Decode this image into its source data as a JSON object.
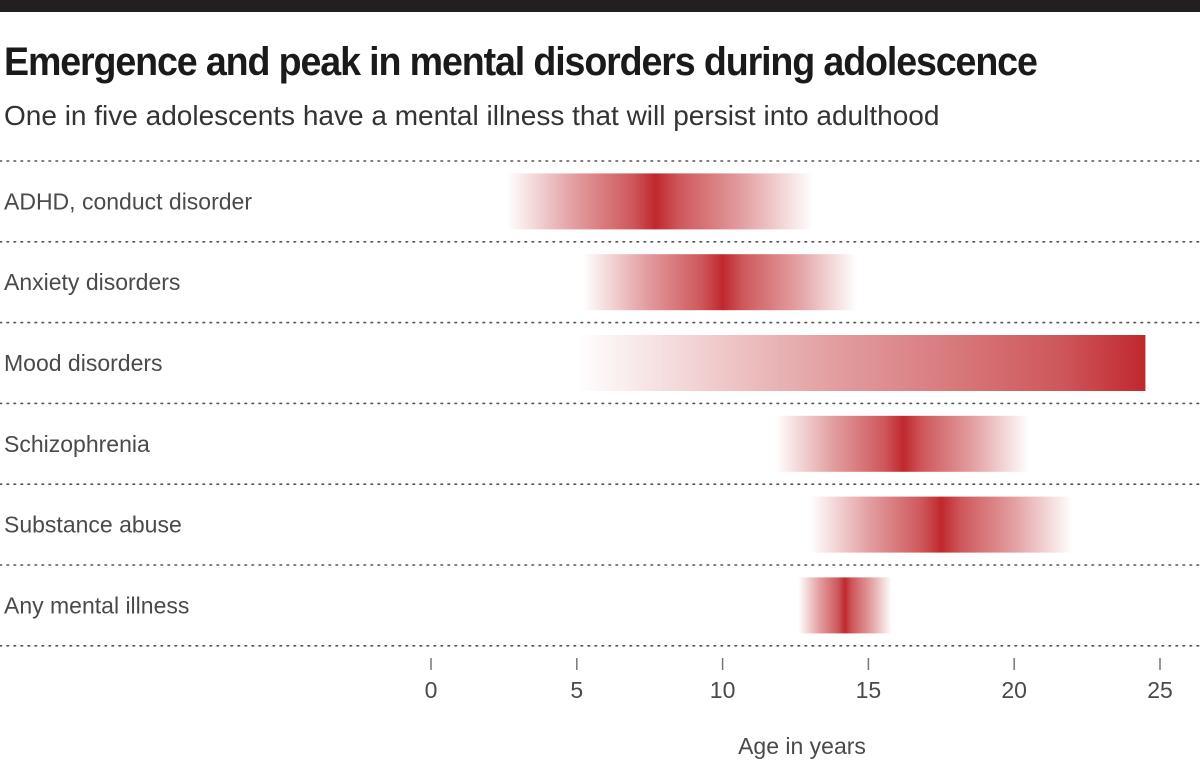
{
  "header": {
    "title": "Emergence and peak in mental disorders during adolescence",
    "subtitle": "One in five adolescents have a mental illness that will persist into adulthood"
  },
  "chart_data": {
    "type": "bar",
    "orientation": "horizontal",
    "title": "Emergence and peak in mental disorders during adolescence",
    "subtitle": "One in five adolescents have a mental illness that will persist into adulthood",
    "xlabel": "Age in years",
    "ylabel": "",
    "xlim": [
      0,
      25
    ],
    "xticks": [
      0,
      5,
      10,
      15,
      20,
      25
    ],
    "grid": "dotted horizontal row separators",
    "color": "#c0282d",
    "categories": [
      "ADHD, conduct disorder",
      "Anxiety disorders",
      "Mood disorders",
      "Schizophrenia",
      "Substance abuse",
      "Any mental illness"
    ],
    "ranges": [
      {
        "category": "ADHD, conduct disorder",
        "start": 2.6,
        "peak": 7.7,
        "end": 13.1
      },
      {
        "category": "Anxiety disorders",
        "start": 5.2,
        "peak": 10.0,
        "end": 14.6
      },
      {
        "category": "Mood disorders",
        "start": 5.0,
        "peak": 24.5,
        "end": 24.5
      },
      {
        "category": "Schizophrenia",
        "start": 11.8,
        "peak": 16.2,
        "end": 20.5
      },
      {
        "category": "Substance abuse",
        "start": 13.0,
        "peak": 17.5,
        "end": 22.0
      },
      {
        "category": "Any mental illness",
        "start": 12.6,
        "peak": 14.2,
        "end": 15.8
      }
    ]
  }
}
